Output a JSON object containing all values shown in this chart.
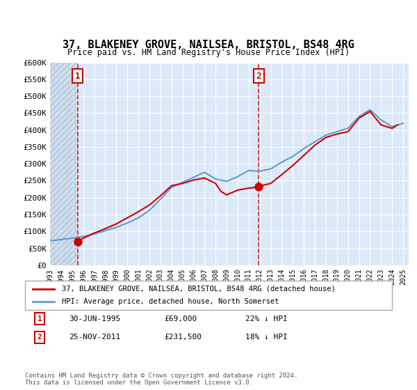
{
  "title": "37, BLAKENEY GROVE, NAILSEA, BRISTOL, BS48 4RG",
  "subtitle": "Price paid vs. HM Land Registry's House Price Index (HPI)",
  "ylabel": "",
  "xlabel": "",
  "ylim": [
    0,
    600000
  ],
  "yticks": [
    0,
    50000,
    100000,
    150000,
    200000,
    250000,
    300000,
    350000,
    400000,
    450000,
    500000,
    550000,
    600000
  ],
  "ytick_labels": [
    "£0",
    "£50K",
    "£100K",
    "£150K",
    "£200K",
    "£250K",
    "£300K",
    "£350K",
    "£400K",
    "£450K",
    "£500K",
    "£550K",
    "£600K"
  ],
  "background_color": "#dce9f8",
  "hatch_color": "#b0c8e8",
  "plot_bg": "#dce9f8",
  "grid_color": "#ffffff",
  "red_line_color": "#cc0000",
  "blue_line_color": "#6699cc",
  "marker_color": "#cc0000",
  "vline_color": "#cc0000",
  "annotation_box_color": "#cc0000",
  "legend_label_red": "37, BLAKENEY GROVE, NAILSEA, BRISTOL, BS48 4RG (detached house)",
  "legend_label_blue": "HPI: Average price, detached house, North Somerset",
  "note1_num": "1",
  "note1_date": "30-JUN-1995",
  "note1_price": "£69,000",
  "note1_hpi": "22% ↓ HPI",
  "note2_num": "2",
  "note2_date": "25-NOV-2011",
  "note2_price": "£231,500",
  "note2_hpi": "18% ↓ HPI",
  "copyright": "Contains HM Land Registry data © Crown copyright and database right 2024.\nThis data is licensed under the Open Government Licence v3.0.",
  "sale1_year": 1995.5,
  "sale1_price": 69000,
  "sale2_year": 2011.9,
  "sale2_price": 231500,
  "hpi_years": [
    1993,
    1994,
    1995,
    1996,
    1997,
    1998,
    1999,
    2000,
    2001,
    2002,
    2003,
    2004,
    2005,
    2006,
    2007,
    2008,
    2009,
    2010,
    2011,
    2012,
    2013,
    2014,
    2015,
    2016,
    2017,
    2018,
    2019,
    2020,
    2021,
    2022,
    2023,
    2024,
    2025
  ],
  "hpi_values": [
    72000,
    76000,
    80000,
    85000,
    92000,
    102000,
    112000,
    125000,
    140000,
    162000,
    195000,
    230000,
    245000,
    260000,
    275000,
    255000,
    248000,
    262000,
    280000,
    278000,
    285000,
    305000,
    322000,
    345000,
    365000,
    385000,
    395000,
    405000,
    440000,
    460000,
    430000,
    410000,
    420000
  ],
  "price_years": [
    1995.5,
    1996,
    1997,
    1998,
    1999,
    2000,
    2001,
    2002,
    2003,
    2004,
    2005,
    2006,
    2007,
    2008,
    2008.5,
    2009,
    2010,
    2011,
    2011.9,
    2012,
    2013,
    2014,
    2015,
    2016,
    2017,
    2018,
    2019,
    2020,
    2021,
    2022,
    2023,
    2024,
    2024.5
  ],
  "price_values": [
    69000,
    80000,
    95000,
    108000,
    122000,
    140000,
    158000,
    178000,
    205000,
    235000,
    242000,
    252000,
    258000,
    242000,
    218000,
    208000,
    222000,
    228000,
    231500,
    234000,
    242000,
    268000,
    295000,
    325000,
    355000,
    378000,
    388000,
    395000,
    435000,
    455000,
    415000,
    405000,
    415000
  ],
  "hatch_end_year": 1995.5,
  "xlim_start": 1993,
  "xlim_end": 2025.5,
  "xtick_years": [
    1993,
    1994,
    1995,
    1996,
    1997,
    1998,
    1999,
    2000,
    2001,
    2002,
    2003,
    2004,
    2005,
    2006,
    2007,
    2008,
    2009,
    2010,
    2011,
    2012,
    2013,
    2014,
    2015,
    2016,
    2017,
    2018,
    2019,
    2020,
    2021,
    2022,
    2023,
    2024,
    2025
  ]
}
